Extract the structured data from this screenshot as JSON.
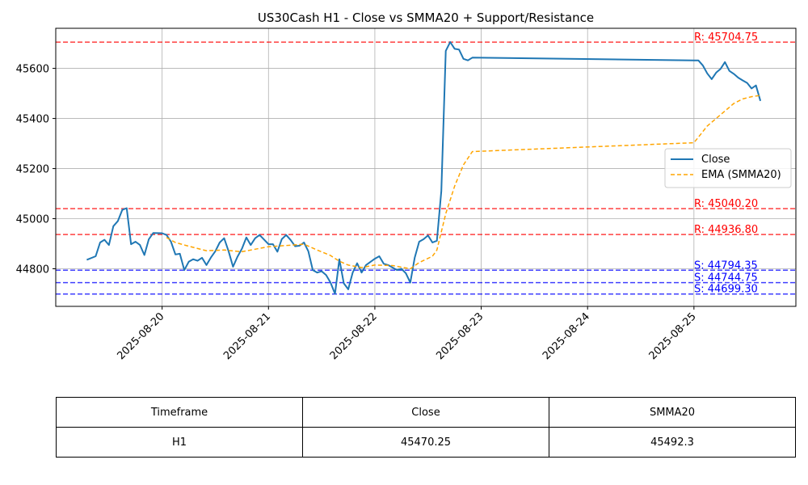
{
  "chart_data": {
    "type": "line",
    "title": "US30Cash H1 - Close vs SMMA20 + Support/Resistance",
    "xlabel": "",
    "ylabel": "",
    "xlim": [
      "2025-08-19 00:00",
      "2025-08-25 23:00"
    ],
    "ylim": [
      44650,
      45760
    ],
    "x_ticks": [
      "2025-08-20",
      "2025-08-21",
      "2025-08-22",
      "2025-08-23",
      "2025-08-24",
      "2025-08-25"
    ],
    "y_ticks": [
      44800,
      45000,
      45200,
      45400,
      45600
    ],
    "grid": true,
    "legend_position": "center-right",
    "series": [
      {
        "name": "Close",
        "color": "#1f77b4",
        "style": "solid",
        "points": [
          [
            "2025-08-19 07:00",
            44836
          ],
          [
            "2025-08-19 09:00",
            44850
          ],
          [
            "2025-08-19 10:00",
            44905
          ],
          [
            "2025-08-19 11:00",
            44916
          ],
          [
            "2025-08-19 12:00",
            44895
          ],
          [
            "2025-08-19 13:00",
            44970
          ],
          [
            "2025-08-19 14:00",
            44990
          ],
          [
            "2025-08-19 15:00",
            45035
          ],
          [
            "2025-08-19 16:00",
            45042
          ],
          [
            "2025-08-19 17:00",
            44898
          ],
          [
            "2025-08-19 18:00",
            44908
          ],
          [
            "2025-08-19 19:00",
            44895
          ],
          [
            "2025-08-19 20:00",
            44855
          ],
          [
            "2025-08-19 21:00",
            44918
          ],
          [
            "2025-08-19 22:00",
            44943
          ],
          [
            "2025-08-20 00:00",
            44942
          ],
          [
            "2025-08-20 01:00",
            44935
          ],
          [
            "2025-08-20 02:00",
            44908
          ],
          [
            "2025-08-20 03:00",
            44857
          ],
          [
            "2025-08-20 04:00",
            44860
          ],
          [
            "2025-08-20 05:00",
            44795
          ],
          [
            "2025-08-20 06:00",
            44828
          ],
          [
            "2025-08-20 07:00",
            44838
          ],
          [
            "2025-08-20 08:00",
            44832
          ],
          [
            "2025-08-20 09:00",
            44844
          ],
          [
            "2025-08-20 10:00",
            44815
          ],
          [
            "2025-08-20 11:00",
            44845
          ],
          [
            "2025-08-20 12:00",
            44870
          ],
          [
            "2025-08-20 13:00",
            44905
          ],
          [
            "2025-08-20 14:00",
            44922
          ],
          [
            "2025-08-20 15:00",
            44870
          ],
          [
            "2025-08-20 16:00",
            44808
          ],
          [
            "2025-08-20 17:00",
            44848
          ],
          [
            "2025-08-20 18:00",
            44880
          ],
          [
            "2025-08-20 19:00",
            44925
          ],
          [
            "2025-08-20 20:00",
            44895
          ],
          [
            "2025-08-20 21:00",
            44922
          ],
          [
            "2025-08-20 22:00",
            44935
          ],
          [
            "2025-08-21 00:00",
            44898
          ],
          [
            "2025-08-21 01:00",
            44898
          ],
          [
            "2025-08-21 02:00",
            44868
          ],
          [
            "2025-08-21 03:00",
            44918
          ],
          [
            "2025-08-21 04:00",
            44935
          ],
          [
            "2025-08-21 05:00",
            44915
          ],
          [
            "2025-08-21 06:00",
            44890
          ],
          [
            "2025-08-21 07:00",
            44892
          ],
          [
            "2025-08-21 08:00",
            44905
          ],
          [
            "2025-08-21 09:00",
            44870
          ],
          [
            "2025-08-21 10:00",
            44795
          ],
          [
            "2025-08-21 11:00",
            44785
          ],
          [
            "2025-08-21 12:00",
            44790
          ],
          [
            "2025-08-21 13:00",
            44775
          ],
          [
            "2025-08-21 14:00",
            44745
          ],
          [
            "2025-08-21 15:00",
            44700
          ],
          [
            "2025-08-21 16:00",
            44838
          ],
          [
            "2025-08-21 17:00",
            44742
          ],
          [
            "2025-08-21 18:00",
            44718
          ],
          [
            "2025-08-21 19:00",
            44785
          ],
          [
            "2025-08-21 20:00",
            44822
          ],
          [
            "2025-08-21 21:00",
            44785
          ],
          [
            "2025-08-21 22:00",
            44815
          ],
          [
            "2025-08-22 00:00",
            44840
          ],
          [
            "2025-08-22 01:00",
            44850
          ],
          [
            "2025-08-22 02:00",
            44820
          ],
          [
            "2025-08-22 03:00",
            44815
          ],
          [
            "2025-08-22 04:00",
            44805
          ],
          [
            "2025-08-22 05:00",
            44795
          ],
          [
            "2025-08-22 06:00",
            44800
          ],
          [
            "2025-08-22 07:00",
            44782
          ],
          [
            "2025-08-22 08:00",
            44745
          ],
          [
            "2025-08-22 09:00",
            44845
          ],
          [
            "2025-08-22 10:00",
            44908
          ],
          [
            "2025-08-22 11:00",
            44918
          ],
          [
            "2025-08-22 12:00",
            44933
          ],
          [
            "2025-08-22 13:00",
            44905
          ],
          [
            "2025-08-22 14:00",
            44912
          ],
          [
            "2025-08-22 15:00",
            45110
          ],
          [
            "2025-08-22 16:00",
            45670
          ],
          [
            "2025-08-22 17:00",
            45705
          ],
          [
            "2025-08-22 18:00",
            45678
          ],
          [
            "2025-08-22 19:00",
            45675
          ],
          [
            "2025-08-22 20:00",
            45638
          ],
          [
            "2025-08-22 21:00",
            45632
          ],
          [
            "2025-08-22 22:00",
            45643
          ],
          [
            "2025-08-25 00:00",
            45632
          ],
          [
            "2025-08-25 01:00",
            45632
          ],
          [
            "2025-08-25 02:00",
            45612
          ],
          [
            "2025-08-25 03:00",
            45580
          ],
          [
            "2025-08-25 04:00",
            45557
          ],
          [
            "2025-08-25 05:00",
            45583
          ],
          [
            "2025-08-25 06:00",
            45598
          ],
          [
            "2025-08-25 07:00",
            45625
          ],
          [
            "2025-08-25 08:00",
            45590
          ],
          [
            "2025-08-25 09:00",
            45578
          ],
          [
            "2025-08-25 10:00",
            45563
          ],
          [
            "2025-08-25 11:00",
            45552
          ],
          [
            "2025-08-25 12:00",
            45542
          ],
          [
            "2025-08-25 13:00",
            45520
          ],
          [
            "2025-08-25 14:00",
            45532
          ],
          [
            "2025-08-25 15:00",
            45470.25
          ]
        ]
      },
      {
        "name": "EMA (SMMA20)",
        "color": "#ffa500",
        "style": "dashed",
        "points": [
          [
            "2025-08-20 01:00",
            44925
          ],
          [
            "2025-08-20 03:00",
            44905
          ],
          [
            "2025-08-20 06:00",
            44890
          ],
          [
            "2025-08-20 10:00",
            44872
          ],
          [
            "2025-08-20 14:00",
            44875
          ],
          [
            "2025-08-20 18:00",
            44868
          ],
          [
            "2025-08-20 21:00",
            44878
          ],
          [
            "2025-08-21 00:00",
            44888
          ],
          [
            "2025-08-21 04:00",
            44893
          ],
          [
            "2025-08-21 08:00",
            44898
          ],
          [
            "2025-08-21 11:00",
            44875
          ],
          [
            "2025-08-21 14:00",
            44853
          ],
          [
            "2025-08-21 16:00",
            44830
          ],
          [
            "2025-08-21 18:00",
            44815
          ],
          [
            "2025-08-21 21:00",
            44805
          ],
          [
            "2025-08-22 00:00",
            44815
          ],
          [
            "2025-08-22 04:00",
            44813
          ],
          [
            "2025-08-22 08:00",
            44800
          ],
          [
            "2025-08-22 10:00",
            44825
          ],
          [
            "2025-08-22 13:00",
            44850
          ],
          [
            "2025-08-22 14:00",
            44875
          ],
          [
            "2025-08-22 16:00",
            45020
          ],
          [
            "2025-08-22 18:00",
            45130
          ],
          [
            "2025-08-22 20:00",
            45215
          ],
          [
            "2025-08-22 22:00",
            45268
          ],
          [
            "2025-08-25 00:00",
            45303
          ],
          [
            "2025-08-25 01:00",
            45325
          ],
          [
            "2025-08-25 03:00",
            45370
          ],
          [
            "2025-08-25 06:00",
            45415
          ],
          [
            "2025-08-25 09:00",
            45460
          ],
          [
            "2025-08-25 11:00",
            45478
          ],
          [
            "2025-08-25 13:00",
            45487
          ],
          [
            "2025-08-25 15:00",
            45492.3
          ]
        ]
      }
    ],
    "levels": [
      {
        "kind": "resistance",
        "label": "R: 45704.75",
        "value": 45704.75,
        "color": "#ff0000"
      },
      {
        "kind": "resistance",
        "label": "R: 45040.20",
        "value": 45040.2,
        "color": "#ff0000"
      },
      {
        "kind": "resistance",
        "label": "R: 44936.80",
        "value": 44936.8,
        "color": "#ff0000"
      },
      {
        "kind": "support",
        "label": "S: 44794.35",
        "value": 44794.35,
        "color": "#0000ff"
      },
      {
        "kind": "support",
        "label": "S: 44744.75",
        "value": 44744.75,
        "color": "#0000ff"
      },
      {
        "kind": "support",
        "label": "S: 44699.30",
        "value": 44699.3,
        "color": "#0000ff"
      }
    ],
    "table": {
      "headers": [
        "Timeframe",
        "Close",
        "SMMA20"
      ],
      "rows": [
        [
          "H1",
          "45470.25",
          "45492.3"
        ]
      ]
    }
  }
}
